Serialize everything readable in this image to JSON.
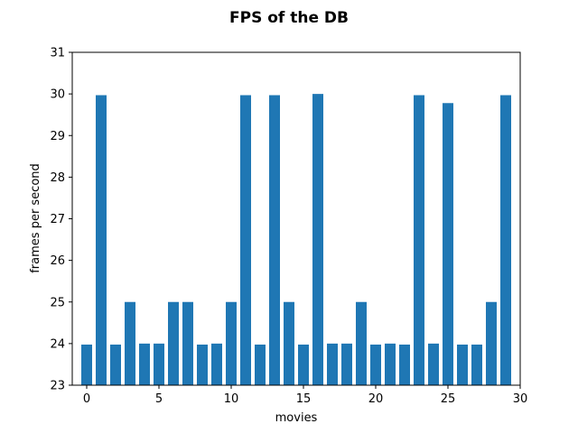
{
  "chart_data": {
    "type": "bar",
    "title": "FPS of the DB",
    "xlabel": "movies",
    "ylabel": "frames per second",
    "x": [
      0,
      1,
      2,
      3,
      4,
      5,
      6,
      7,
      8,
      9,
      10,
      11,
      12,
      13,
      14,
      15,
      16,
      17,
      18,
      19,
      20,
      21,
      22,
      23,
      24,
      25,
      26,
      27,
      28,
      29
    ],
    "values": [
      23.976,
      29.97,
      23.976,
      25,
      24,
      24,
      25,
      25,
      23.976,
      24,
      25,
      29.97,
      23.976,
      29.97,
      25,
      23.976,
      30,
      24,
      24,
      25,
      23.976,
      24,
      23.976,
      29.97,
      24,
      29.78,
      23.976,
      23.976,
      25,
      29.97
    ],
    "xlim": [
      -1,
      30
    ],
    "ylim": [
      23,
      31
    ],
    "xticks": [
      0,
      5,
      10,
      15,
      20,
      25,
      30
    ],
    "yticks": [
      23,
      24,
      25,
      26,
      27,
      28,
      29,
      30,
      31
    ],
    "bar_color": "#1f77b4",
    "grid": false,
    "legend": "none"
  }
}
